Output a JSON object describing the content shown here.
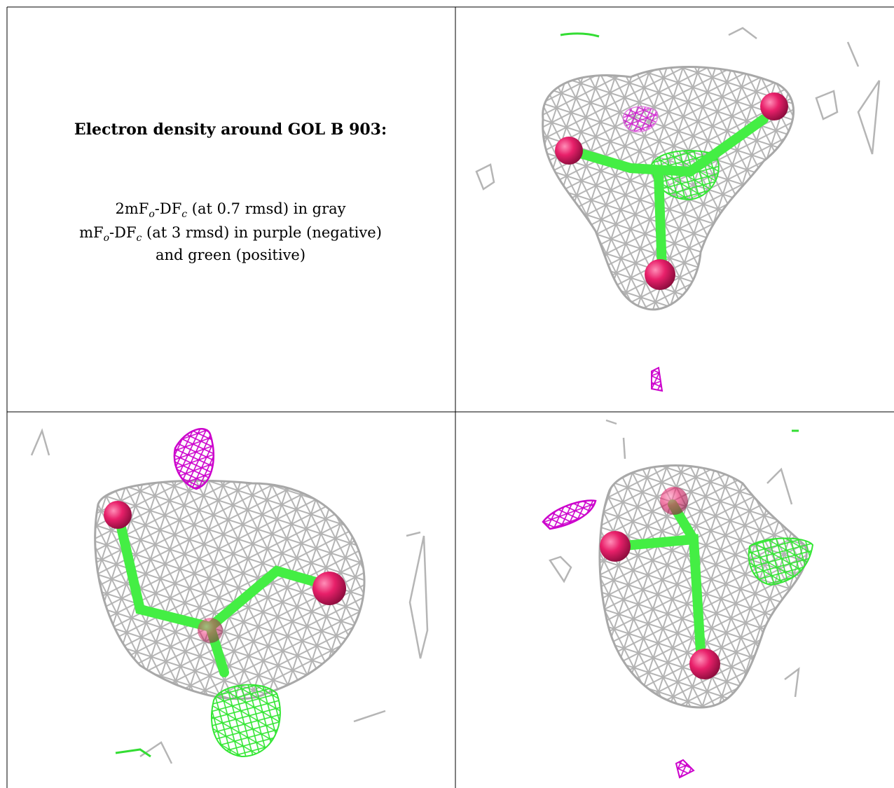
{
  "caption": {
    "title": "Electron density around GOL B 903:",
    "line1": {
      "a": "2mF",
      "sub_o": "o",
      "b": "-DF",
      "sub_c": "c",
      "rest": " (at 0.7 rmsd) in gray"
    },
    "line2": {
      "a": "mF",
      "sub_o": "o",
      "b": "-DF",
      "sub_c": "c",
      "rest": " (at 3 rmsd) in purple (negative)"
    },
    "line3": "and green (positive)"
  },
  "colors": {
    "gray_mesh": "#b0b0b0",
    "negative_mesh": "#cc00cc",
    "positive_mesh": "#33ee33",
    "oxygen": "#e8206a",
    "carbon_bond": "#44ee44"
  }
}
